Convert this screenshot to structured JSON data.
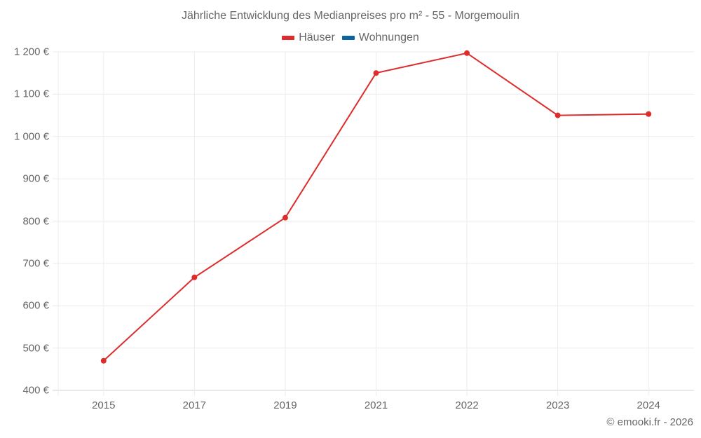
{
  "title": "Jährliche Entwicklung des Medianpreises pro m² - 55 - Morgemoulin",
  "legend": [
    {
      "label": "Häuser",
      "color": "#dd2c2c"
    },
    {
      "label": "Wohnungen",
      "color": "#0e649e"
    }
  ],
  "y_ticks": [
    "1 200 €",
    "1 100 €",
    "1 000 €",
    "900 €",
    "800 €",
    "700 €",
    "600 €",
    "500 €",
    "400 €"
  ],
  "x_ticks": [
    "2015",
    "2017",
    "2019",
    "2021",
    "2022",
    "2023",
    "2024"
  ],
  "credit": "© emooki.fr - 2026",
  "chart_data": {
    "type": "line",
    "title": "Jährliche Entwicklung des Medianpreises pro m² - 55 - Morgemoulin",
    "xlabel": "",
    "ylabel": "",
    "categories": [
      "2015",
      "2017",
      "2019",
      "2021",
      "2022",
      "2023",
      "2024"
    ],
    "series": [
      {
        "name": "Häuser",
        "color": "#dd2c2c",
        "values": [
          470,
          667,
          808,
          1150,
          1197,
          1050,
          1053
        ]
      },
      {
        "name": "Wohnungen",
        "color": "#0e649e",
        "values": []
      }
    ],
    "ylim": [
      400,
      1200
    ],
    "y_tick_step": 100,
    "y_unit": "€",
    "grid": true,
    "legend_position": "top"
  }
}
